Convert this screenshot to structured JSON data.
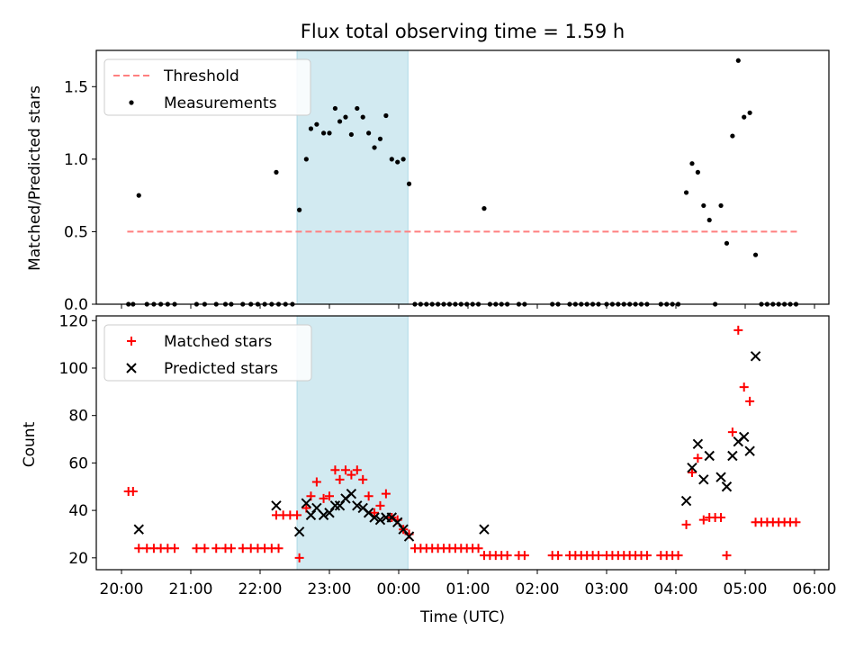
{
  "chart_data": [
    {
      "type": "scatter",
      "title": "Flux total observing time = 1.59 h",
      "ylabel": "Matched/Predicted stars",
      "xlabel": "",
      "xlim": [
        "20:00",
        "06:00"
      ],
      "ylim": [
        0,
        1.75
      ],
      "yticks": [
        "0.0",
        "0.5",
        "1.0",
        "1.5"
      ],
      "legend": [
        "Threshold",
        "Measurements"
      ],
      "legend_position": "top-left",
      "highlight_span": {
        "start": "22:32",
        "end": "00:08",
        "color": "#add8e6"
      },
      "threshold": {
        "name": "Threshold",
        "value": 0.5,
        "x_range": [
          "20:05",
          "05:45"
        ],
        "color": "#ff7f7f"
      },
      "series": [
        {
          "name": "Measurements",
          "color": "#000000",
          "points": [
            [
              "20:06",
              0
            ],
            [
              "20:10",
              0
            ],
            [
              "20:15",
              0.75
            ],
            [
              "20:22",
              0
            ],
            [
              "20:28",
              0
            ],
            [
              "20:34",
              0
            ],
            [
              "20:40",
              0
            ],
            [
              "20:46",
              0
            ],
            [
              "21:05",
              0
            ],
            [
              "21:12",
              0
            ],
            [
              "21:22",
              0
            ],
            [
              "21:30",
              0
            ],
            [
              "21:35",
              0
            ],
            [
              "21:45",
              0
            ],
            [
              "21:52",
              0
            ],
            [
              "21:58",
              0
            ],
            [
              "22:04",
              0
            ],
            [
              "22:10",
              0
            ],
            [
              "22:16",
              0
            ],
            [
              "22:22",
              0
            ],
            [
              "22:28",
              0
            ],
            [
              "22:14",
              0.91
            ],
            [
              "22:34",
              0.65
            ],
            [
              "22:40",
              1.0
            ],
            [
              "22:44",
              1.21
            ],
            [
              "22:49",
              1.24
            ],
            [
              "22:55",
              1.18
            ],
            [
              "23:00",
              1.18
            ],
            [
              "23:05",
              1.35
            ],
            [
              "23:09",
              1.26
            ],
            [
              "23:14",
              1.29
            ],
            [
              "23:19",
              1.17
            ],
            [
              "23:24",
              1.35
            ],
            [
              "23:29",
              1.29
            ],
            [
              "23:34",
              1.18
            ],
            [
              "23:39",
              1.08
            ],
            [
              "23:44",
              1.14
            ],
            [
              "23:49",
              1.3
            ],
            [
              "23:54",
              1.0
            ],
            [
              "23:59",
              0.98
            ],
            [
              "00:04",
              1.0
            ],
            [
              "00:09",
              0.83
            ],
            [
              "00:14",
              0
            ],
            [
              "00:19",
              0
            ],
            [
              "00:24",
              0
            ],
            [
              "00:29",
              0
            ],
            [
              "00:34",
              0
            ],
            [
              "00:39",
              0
            ],
            [
              "00:44",
              0
            ],
            [
              "00:49",
              0
            ],
            [
              "00:54",
              0
            ],
            [
              "00:59",
              0
            ],
            [
              "01:04",
              0
            ],
            [
              "01:09",
              0
            ],
            [
              "01:14",
              0.66
            ],
            [
              "01:19",
              0
            ],
            [
              "01:24",
              0
            ],
            [
              "01:29",
              0
            ],
            [
              "01:34",
              0
            ],
            [
              "01:44",
              0
            ],
            [
              "01:49",
              0
            ],
            [
              "02:13",
              0
            ],
            [
              "02:18",
              0
            ],
            [
              "02:28",
              0
            ],
            [
              "02:33",
              0
            ],
            [
              "02:38",
              0
            ],
            [
              "02:43",
              0
            ],
            [
              "02:48",
              0
            ],
            [
              "02:53",
              0
            ],
            [
              "03:00",
              0
            ],
            [
              "03:05",
              0
            ],
            [
              "03:10",
              0
            ],
            [
              "03:15",
              0
            ],
            [
              "03:20",
              0
            ],
            [
              "03:25",
              0
            ],
            [
              "03:30",
              0
            ],
            [
              "03:35",
              0
            ],
            [
              "03:47",
              0
            ],
            [
              "03:52",
              0
            ],
            [
              "03:57",
              0
            ],
            [
              "04:02",
              0
            ],
            [
              "04:09",
              0.77
            ],
            [
              "04:14",
              0.97
            ],
            [
              "04:19",
              0.91
            ],
            [
              "04:24",
              0.68
            ],
            [
              "04:29",
              0.58
            ],
            [
              "04:34",
              0
            ],
            [
              "04:39",
              0.68
            ],
            [
              "04:44",
              0.42
            ],
            [
              "04:49",
              1.16
            ],
            [
              "04:54",
              1.68
            ],
            [
              "04:59",
              1.29
            ],
            [
              "05:04",
              1.32
            ],
            [
              "05:09",
              0.34
            ],
            [
              "05:14",
              0
            ],
            [
              "05:19",
              0
            ],
            [
              "05:24",
              0
            ],
            [
              "05:29",
              0
            ],
            [
              "05:34",
              0
            ],
            [
              "05:39",
              0
            ],
            [
              "05:44",
              0
            ]
          ]
        }
      ]
    },
    {
      "type": "scatter",
      "title": "",
      "ylabel": "Count",
      "xlabel": "Time (UTC)",
      "xlim": [
        "20:00",
        "06:00"
      ],
      "ylim": [
        15,
        122
      ],
      "yticks": [
        "20",
        "40",
        "60",
        "80",
        "100",
        "120"
      ],
      "xticks": [
        "20:00",
        "21:00",
        "22:00",
        "23:00",
        "00:00",
        "01:00",
        "02:00",
        "03:00",
        "04:00",
        "05:00",
        "06:00"
      ],
      "legend": [
        "Matched stars",
        "Predicted stars"
      ],
      "legend_position": "top-left",
      "highlight_span": {
        "start": "22:32",
        "end": "00:08",
        "color": "#add8e6"
      },
      "series": [
        {
          "name": "Matched stars",
          "marker": "plus",
          "color": "#ff0000",
          "points": [
            [
              "20:06",
              48
            ],
            [
              "20:10",
              48
            ],
            [
              "20:15",
              24
            ],
            [
              "20:22",
              24
            ],
            [
              "20:28",
              24
            ],
            [
              "20:34",
              24
            ],
            [
              "20:40",
              24
            ],
            [
              "20:46",
              24
            ],
            [
              "21:05",
              24
            ],
            [
              "21:12",
              24
            ],
            [
              "21:22",
              24
            ],
            [
              "21:30",
              24
            ],
            [
              "21:35",
              24
            ],
            [
              "21:45",
              24
            ],
            [
              "21:52",
              24
            ],
            [
              "21:58",
              24
            ],
            [
              "22:04",
              24
            ],
            [
              "22:10",
              24
            ],
            [
              "22:16",
              24
            ],
            [
              "22:14",
              38
            ],
            [
              "22:20",
              38
            ],
            [
              "22:26",
              38
            ],
            [
              "22:32",
              38
            ],
            [
              "22:34",
              20
            ],
            [
              "22:40",
              41
            ],
            [
              "22:44",
              46
            ],
            [
              "22:49",
              52
            ],
            [
              "22:55",
              45
            ],
            [
              "23:00",
              46
            ],
            [
              "23:05",
              57
            ],
            [
              "23:09",
              53
            ],
            [
              "23:14",
              57
            ],
            [
              "23:19",
              55
            ],
            [
              "23:24",
              57
            ],
            [
              "23:29",
              53
            ],
            [
              "23:34",
              46
            ],
            [
              "23:39",
              39
            ],
            [
              "23:44",
              42
            ],
            [
              "23:49",
              47
            ],
            [
              "23:54",
              37
            ],
            [
              "23:59",
              36
            ],
            [
              "00:04",
              32
            ],
            [
              "00:09",
              30
            ],
            [
              "00:14",
              24
            ],
            [
              "00:19",
              24
            ],
            [
              "00:24",
              24
            ],
            [
              "00:29",
              24
            ],
            [
              "00:34",
              24
            ],
            [
              "00:39",
              24
            ],
            [
              "00:44",
              24
            ],
            [
              "00:49",
              24
            ],
            [
              "00:54",
              24
            ],
            [
              "00:59",
              24
            ],
            [
              "01:04",
              24
            ],
            [
              "01:09",
              24
            ],
            [
              "01:14",
              21
            ],
            [
              "01:19",
              21
            ],
            [
              "01:24",
              21
            ],
            [
              "01:29",
              21
            ],
            [
              "01:34",
              21
            ],
            [
              "01:44",
              21
            ],
            [
              "01:49",
              21
            ],
            [
              "02:13",
              21
            ],
            [
              "02:18",
              21
            ],
            [
              "02:28",
              21
            ],
            [
              "02:33",
              21
            ],
            [
              "02:38",
              21
            ],
            [
              "02:43",
              21
            ],
            [
              "02:48",
              21
            ],
            [
              "02:53",
              21
            ],
            [
              "03:00",
              21
            ],
            [
              "03:05",
              21
            ],
            [
              "03:10",
              21
            ],
            [
              "03:15",
              21
            ],
            [
              "03:20",
              21
            ],
            [
              "03:25",
              21
            ],
            [
              "03:30",
              21
            ],
            [
              "03:35",
              21
            ],
            [
              "03:47",
              21
            ],
            [
              "03:52",
              21
            ],
            [
              "03:57",
              21
            ],
            [
              "04:02",
              21
            ],
            [
              "04:09",
              34
            ],
            [
              "04:14",
              56
            ],
            [
              "04:19",
              62
            ],
            [
              "04:24",
              36
            ],
            [
              "04:29",
              37
            ],
            [
              "04:34",
              37
            ],
            [
              "04:39",
              37
            ],
            [
              "04:44",
              21
            ],
            [
              "04:49",
              73
            ],
            [
              "04:54",
              116
            ],
            [
              "04:59",
              92
            ],
            [
              "05:04",
              86
            ],
            [
              "05:09",
              35
            ],
            [
              "05:14",
              35
            ],
            [
              "05:19",
              35
            ],
            [
              "05:24",
              35
            ],
            [
              "05:29",
              35
            ],
            [
              "05:34",
              35
            ],
            [
              "05:39",
              35
            ],
            [
              "05:44",
              35
            ]
          ]
        },
        {
          "name": "Predicted stars",
          "marker": "x",
          "color": "#000000",
          "points": [
            [
              "20:15",
              32
            ],
            [
              "22:14",
              42
            ],
            [
              "22:34",
              31
            ],
            [
              "22:40",
              43
            ],
            [
              "22:44",
              38
            ],
            [
              "22:49",
              41
            ],
            [
              "22:55",
              38
            ],
            [
              "23:00",
              39
            ],
            [
              "23:05",
              42
            ],
            [
              "23:09",
              42
            ],
            [
              "23:14",
              45
            ],
            [
              "23:19",
              47
            ],
            [
              "23:24",
              42
            ],
            [
              "23:29",
              41
            ],
            [
              "23:34",
              39
            ],
            [
              "23:39",
              37
            ],
            [
              "23:44",
              36
            ],
            [
              "23:49",
              37
            ],
            [
              "23:54",
              37
            ],
            [
              "23:59",
              35
            ],
            [
              "00:04",
              32
            ],
            [
              "00:09",
              29
            ],
            [
              "01:14",
              32
            ],
            [
              "04:09",
              44
            ],
            [
              "04:14",
              58
            ],
            [
              "04:19",
              68
            ],
            [
              "04:24",
              53
            ],
            [
              "04:29",
              63
            ],
            [
              "04:39",
              54
            ],
            [
              "04:44",
              50
            ],
            [
              "04:49",
              63
            ],
            [
              "04:54",
              69
            ],
            [
              "04:59",
              71
            ],
            [
              "05:04",
              65
            ],
            [
              "05:09",
              105
            ]
          ]
        }
      ]
    }
  ]
}
